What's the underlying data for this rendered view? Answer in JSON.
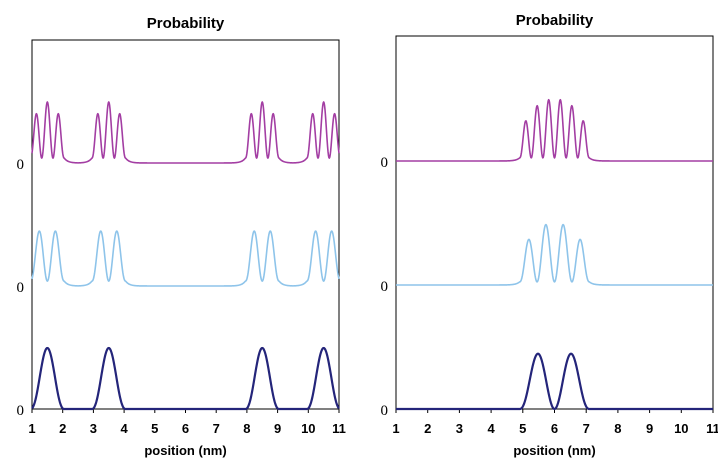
{
  "chart_data": [
    {
      "type": "line",
      "title": "Probability",
      "xlabel": "position (nm)",
      "ylabel": "",
      "xlim": [
        1,
        11
      ],
      "xticks": [
        "1",
        "2",
        "3",
        "4",
        "5",
        "6",
        "7",
        "8",
        "9",
        "10",
        "11"
      ],
      "offset_labels": [
        "0",
        "0",
        "0"
      ],
      "grid": false,
      "legend": "none",
      "description_of_series": "three vertically offset probability densities; wells centered near 1.5, 3.5, 8.5 and 10.5 nm",
      "series": [
        {
          "color": "#a33ea3",
          "baseline_label": "0",
          "wells": [
            1.5,
            3.5,
            8.5,
            10.5
          ],
          "well_half_width": 0.55,
          "lobes": 3,
          "peak": 1.0,
          "floor": 0.08
        },
        {
          "color": "#8ec4ea",
          "baseline_label": "0",
          "wells": [
            1.5,
            3.5,
            8.5,
            10.5
          ],
          "well_half_width": 0.55,
          "lobes": 2,
          "peak": 1.0,
          "floor": 0.08
        },
        {
          "color": "#24257a",
          "baseline_label": "0",
          "wells": [
            1.5,
            3.5,
            8.5,
            10.5
          ],
          "well_half_width": 0.55,
          "lobes": 1,
          "peak": 1.0,
          "floor": 0.0
        }
      ]
    },
    {
      "type": "line",
      "title": "Probability",
      "xlabel": "position (nm)",
      "ylabel": "",
      "xlim": [
        1,
        11
      ],
      "xticks": [
        "1",
        "2",
        "3",
        "4",
        "5",
        "6",
        "7",
        "8",
        "9",
        "10",
        "11"
      ],
      "offset_labels": [
        "0",
        "0",
        "0"
      ],
      "grid": false,
      "legend": "none",
      "series": [
        {
          "color": "#a33ea3",
          "baseline_label": "0",
          "wells": [
            6.0
          ],
          "well_half_width": 1.1,
          "lobes": 6,
          "peak": 1.0,
          "floor": 0.05
        },
        {
          "color": "#8ec4ea",
          "baseline_label": "0",
          "wells": [
            6.0
          ],
          "well_half_width": 1.1,
          "lobes": 4,
          "peak": 1.0,
          "floor": 0.05
        },
        {
          "color": "#24257a",
          "baseline_label": "0",
          "wells": [
            6.0
          ],
          "well_half_width": 1.1,
          "lobes": 2,
          "peak": 1.0,
          "floor": 0.0
        }
      ]
    }
  ]
}
